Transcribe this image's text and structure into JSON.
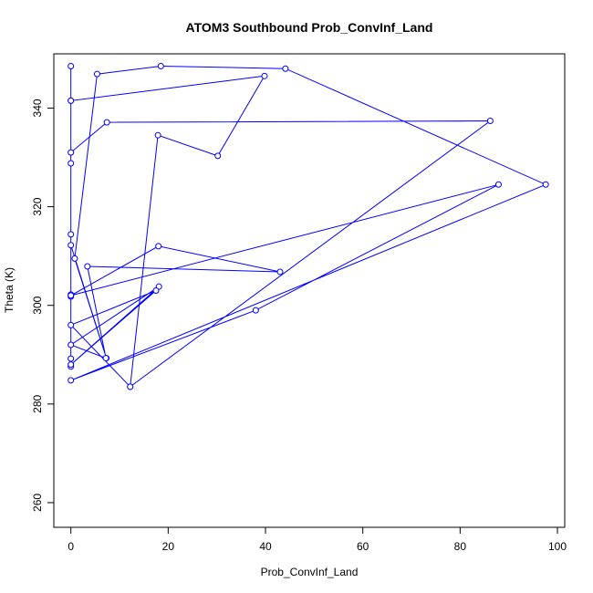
{
  "chart_data": {
    "type": "line",
    "title": "ATOM3 Southbound Prob_ConvInf_Land",
    "xlabel": "Prob_ConvInf_Land",
    "ylabel": "Theta (K)",
    "xlim": [
      -3.5,
      101.5
    ],
    "ylim": [
      255,
      351
    ],
    "xticks": [
      0,
      20,
      40,
      60,
      80,
      100
    ],
    "yticks": [
      260,
      280,
      300,
      320,
      340
    ],
    "grid": false,
    "series": [
      {
        "color": "#0000ff",
        "marker": "open-circle",
        "points": [
          {
            "x": 0.0,
            "y": 289.2
          },
          {
            "x": 0.0,
            "y": 348.5
          },
          {
            "x": 0.0,
            "y": 287.6
          },
          {
            "x": 0.0,
            "y": 341.5
          },
          {
            "x": 0.0,
            "y": 302.2
          },
          {
            "x": 0.0,
            "y": 328.8
          },
          {
            "x": 0.0,
            "y": 301.8
          },
          {
            "x": 0.0,
            "y": 314.4
          },
          {
            "x": 0.0,
            "y": 312.2
          },
          {
            "x": 7.3,
            "y": 289.3
          },
          {
            "x": 0.8,
            "y": 309.5
          },
          {
            "x": 5.4,
            "y": 346.9
          },
          {
            "x": 18.5,
            "y": 348.5
          },
          {
            "x": 44.1,
            "y": 348.0
          },
          {
            "x": 97.6,
            "y": 324.5
          },
          {
            "x": 0.0,
            "y": 284.8
          },
          {
            "x": 38.0,
            "y": 299.0
          },
          {
            "x": 87.9,
            "y": 324.5
          },
          {
            "x": 0.0,
            "y": 302.0
          },
          {
            "x": 18.0,
            "y": 312.0
          },
          {
            "x": 43.0,
            "y": 306.8
          },
          {
            "x": 3.4,
            "y": 307.9
          },
          {
            "x": 7.2,
            "y": 289.3
          },
          {
            "x": 0.0,
            "y": 292.0
          },
          {
            "x": 18.1,
            "y": 303.8
          },
          {
            "x": 0.0,
            "y": 288.0
          },
          {
            "x": 17.5,
            "y": 303.0
          },
          {
            "x": 0.0,
            "y": 296.0
          },
          {
            "x": 12.2,
            "y": 283.5
          },
          {
            "x": 17.9,
            "y": 334.5
          },
          {
            "x": 30.2,
            "y": 330.3
          },
          {
            "x": 39.8,
            "y": 346.5
          },
          {
            "x": 0.0,
            "y": 341.5
          },
          {
            "x": 0.0,
            "y": 331.0
          },
          {
            "x": 7.4,
            "y": 337.1
          },
          {
            "x": 86.2,
            "y": 337.4
          },
          {
            "x": 12.2,
            "y": 283.5
          }
        ]
      }
    ]
  }
}
